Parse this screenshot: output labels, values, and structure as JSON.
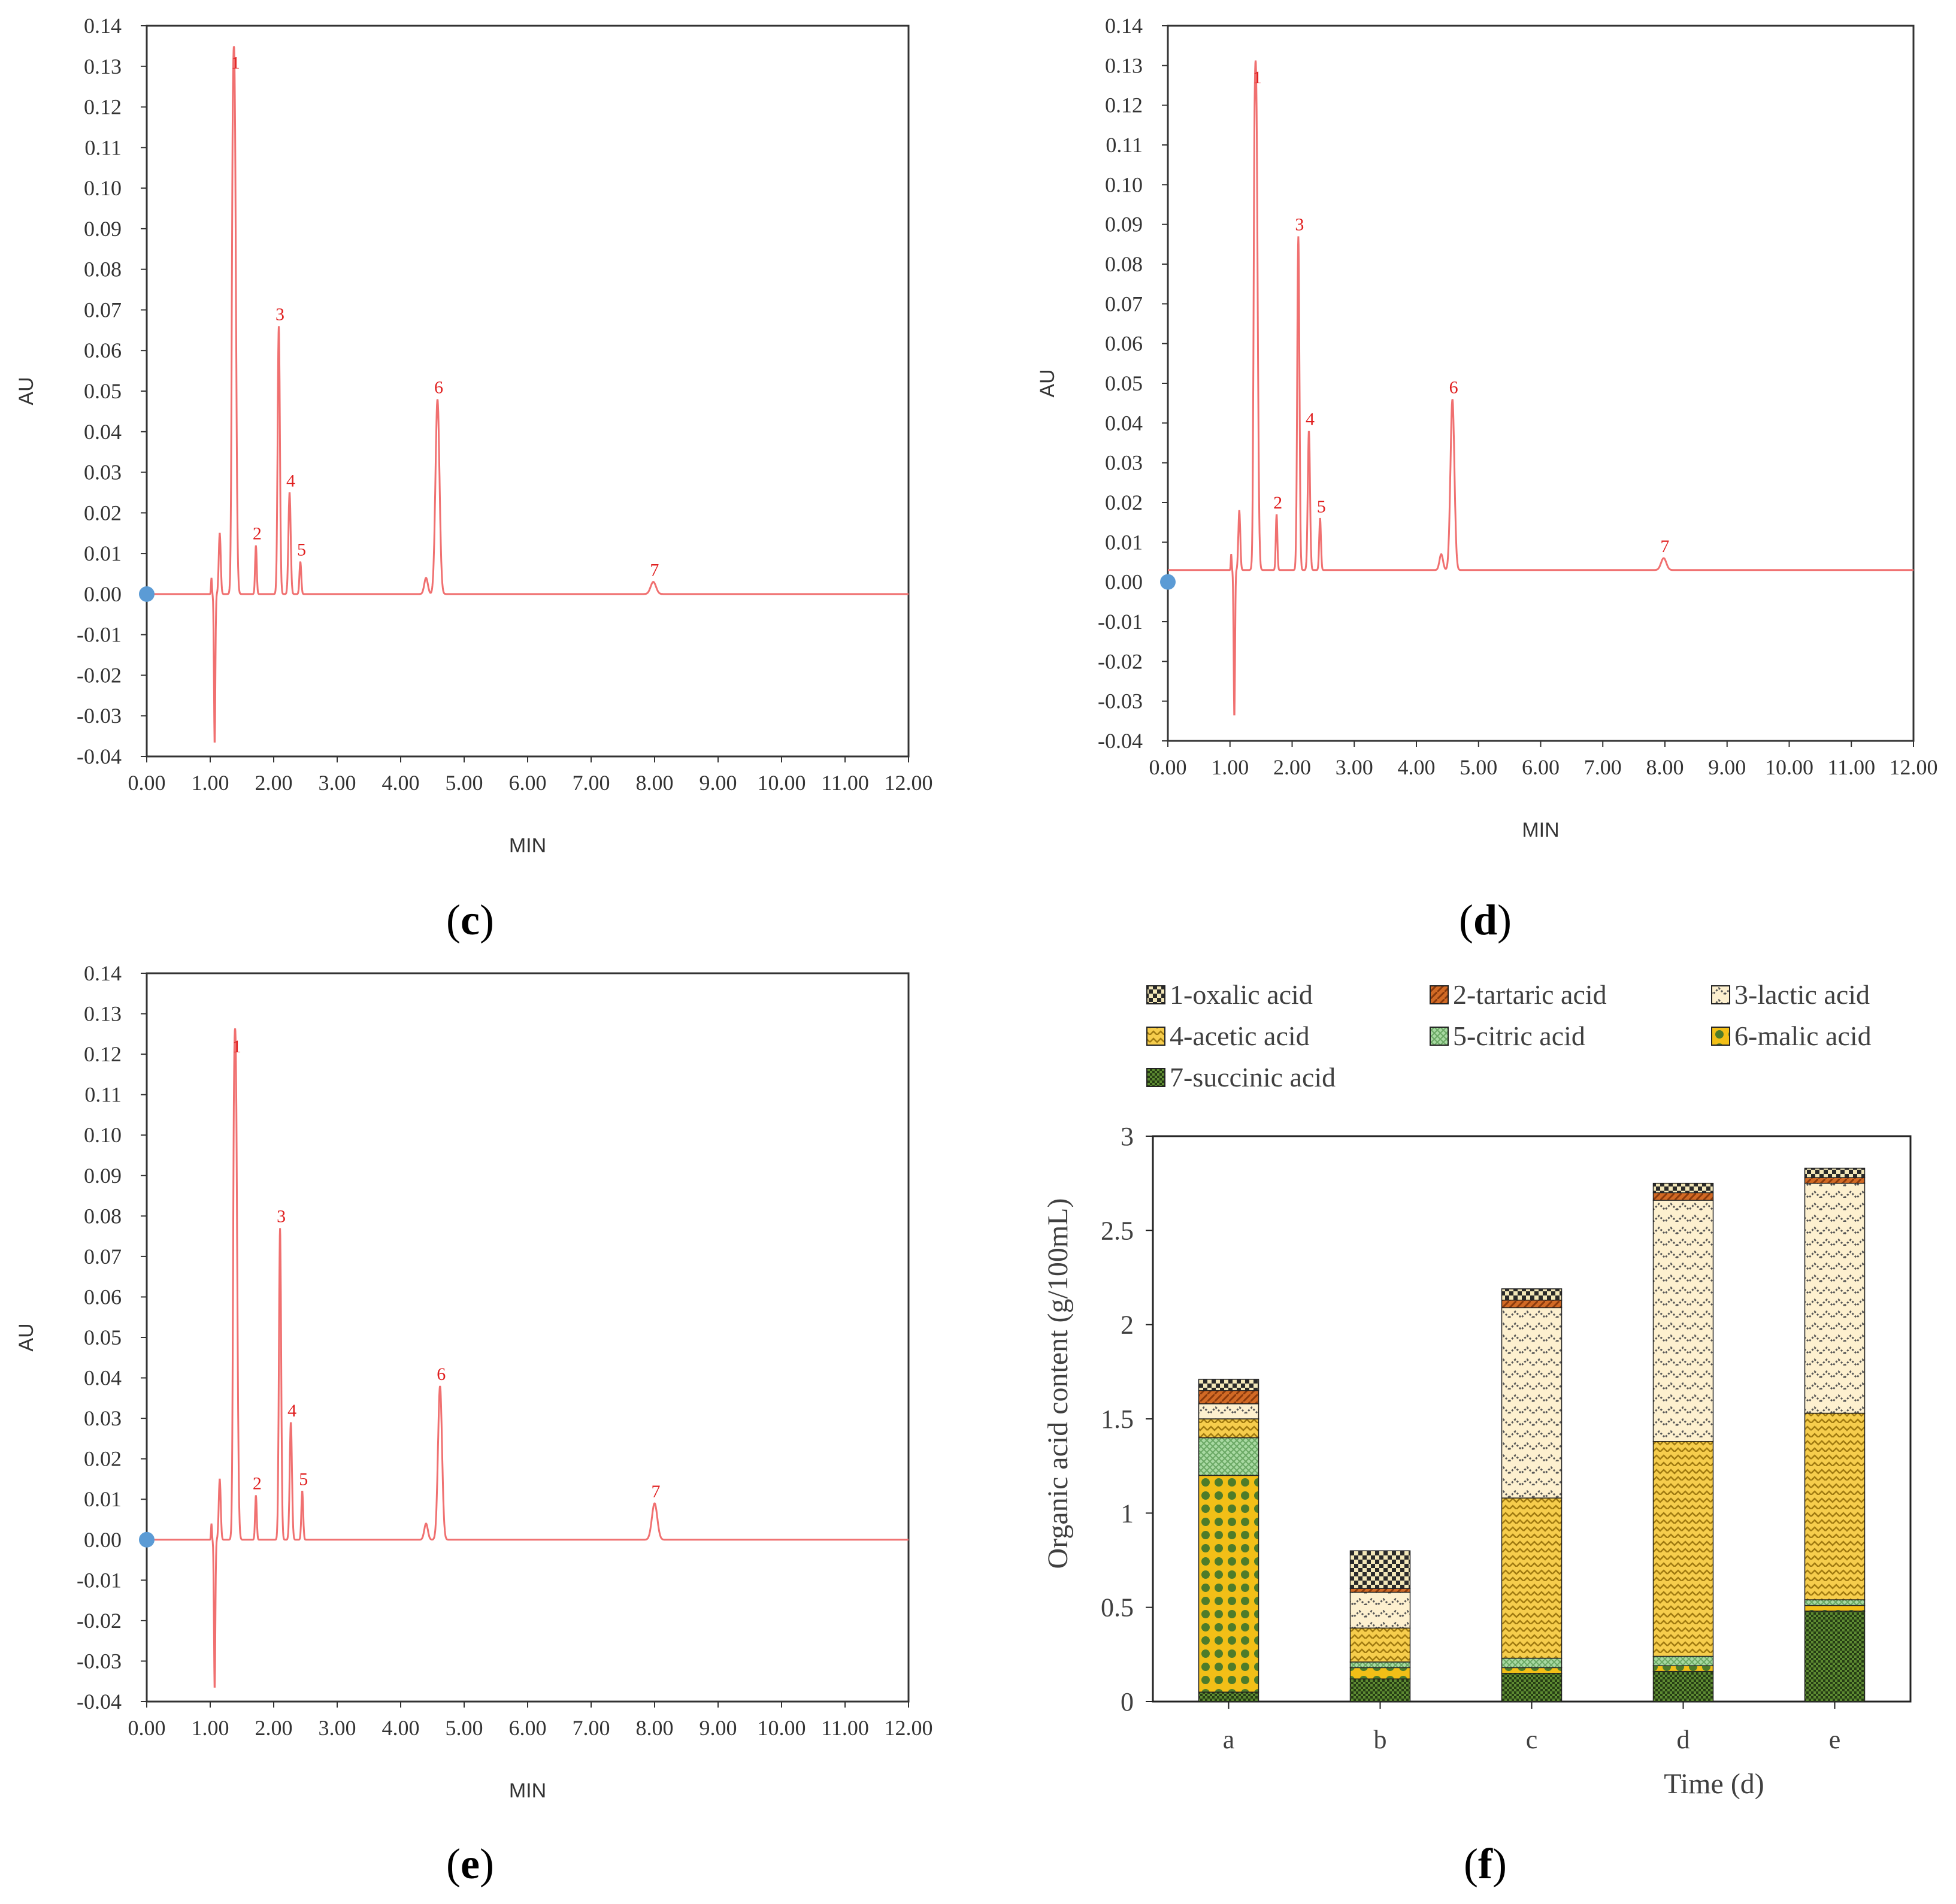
{
  "chart_data": [
    {
      "type": "line",
      "panel_label": "c",
      "xlabel": "MIN",
      "ylabel": "AU",
      "xlim": [
        0,
        12
      ],
      "ylim": [
        -0.04,
        0.14
      ],
      "x_ticks": [
        "0.00",
        "1.00",
        "2.00",
        "3.00",
        "4.00",
        "5.00",
        "6.00",
        "7.00",
        "8.00",
        "9.00",
        "10.00",
        "11.00",
        "12.00"
      ],
      "y_ticks": [
        "-0.04",
        "-0.03",
        "-0.02",
        "-0.01",
        "0.00",
        "0.01",
        "0.02",
        "0.03",
        "0.04",
        "0.05",
        "0.06",
        "0.07",
        "0.08",
        "0.09",
        "0.10",
        "0.11",
        "0.12",
        "0.13",
        "0.14"
      ],
      "baseline": 0.0,
      "peaks": [
        {
          "label": "1",
          "x": 1.38,
          "y": 0.128
        },
        {
          "label": "2",
          "x": 1.72,
          "y": 0.012
        },
        {
          "label": "3",
          "x": 2.08,
          "y": 0.066
        },
        {
          "label": "4",
          "x": 2.25,
          "y": 0.025
        },
        {
          "label": "5",
          "x": 2.42,
          "y": 0.008
        },
        {
          "label": "6",
          "x": 4.58,
          "y": 0.048
        },
        {
          "label": "7",
          "x": 7.98,
          "y": 0.003
        }
      ]
    },
    {
      "type": "line",
      "panel_label": "d",
      "xlabel": "MIN",
      "ylabel": "AU",
      "xlim": [
        0,
        12
      ],
      "ylim": [
        -0.04,
        0.14
      ],
      "x_ticks": [
        "0.00",
        "1.00",
        "2.00",
        "3.00",
        "4.00",
        "5.00",
        "6.00",
        "7.00",
        "8.00",
        "9.00",
        "10.00",
        "11.00",
        "12.00"
      ],
      "y_ticks": [
        "-0.04",
        "-0.03",
        "-0.02",
        "-0.01",
        "0.00",
        "0.01",
        "0.02",
        "0.03",
        "0.04",
        "0.05",
        "0.06",
        "0.07",
        "0.08",
        "0.09",
        "0.10",
        "0.11",
        "0.12",
        "0.13",
        "0.14"
      ],
      "baseline": 0.003,
      "peaks": [
        {
          "label": "1",
          "x": 1.42,
          "y": 0.124
        },
        {
          "label": "2",
          "x": 1.75,
          "y": 0.017
        },
        {
          "label": "3",
          "x": 2.1,
          "y": 0.087
        },
        {
          "label": "4",
          "x": 2.27,
          "y": 0.038
        },
        {
          "label": "5",
          "x": 2.45,
          "y": 0.016
        },
        {
          "label": "6",
          "x": 4.58,
          "y": 0.046
        },
        {
          "label": "7",
          "x": 7.98,
          "y": 0.006
        }
      ]
    },
    {
      "type": "line",
      "panel_label": "e",
      "xlabel": "MIN",
      "ylabel": "AU",
      "xlim": [
        0,
        12
      ],
      "ylim": [
        -0.04,
        0.14
      ],
      "x_ticks": [
        "0.00",
        "1.00",
        "2.00",
        "3.00",
        "4.00",
        "5.00",
        "6.00",
        "7.00",
        "8.00",
        "9.00",
        "10.00",
        "11.00",
        "12.00"
      ],
      "y_ticks": [
        "-0.04",
        "-0.03",
        "-0.02",
        "-0.01",
        "0.00",
        "0.01",
        "0.02",
        "0.03",
        "0.04",
        "0.05",
        "0.06",
        "0.07",
        "0.08",
        "0.09",
        "0.10",
        "0.11",
        "0.12",
        "0.13",
        "0.14"
      ],
      "baseline": 0.0,
      "peaks": [
        {
          "label": "1",
          "x": 1.4,
          "y": 0.119
        },
        {
          "label": "2",
          "x": 1.72,
          "y": 0.011
        },
        {
          "label": "3",
          "x": 2.1,
          "y": 0.077
        },
        {
          "label": "4",
          "x": 2.27,
          "y": 0.029
        },
        {
          "label": "5",
          "x": 2.45,
          "y": 0.012
        },
        {
          "label": "6",
          "x": 4.62,
          "y": 0.038
        },
        {
          "label": "7",
          "x": 8.0,
          "y": 0.009
        }
      ]
    },
    {
      "type": "bar",
      "stacked": true,
      "panel_label": "f",
      "xlabel": "Time (d)",
      "ylabel": "Organic acid content (g/100mL)",
      "ylim": [
        0,
        3
      ],
      "y_ticks": [
        "0",
        "0.5",
        "1",
        "1.5",
        "2",
        "2.5",
        "3"
      ],
      "categories": [
        "a",
        "b",
        "c",
        "d",
        "e"
      ],
      "legend_position": "top",
      "series": [
        {
          "name": "7-succinic acid",
          "color": "#5a8a2e",
          "values": [
            0.05,
            0.12,
            0.15,
            0.16,
            0.48
          ]
        },
        {
          "name": "6-malic acid",
          "color": "#f2c018",
          "values": [
            1.15,
            0.06,
            0.03,
            0.03,
            0.03
          ]
        },
        {
          "name": "5-citric acid",
          "color": "#9fd49a",
          "values": [
            0.2,
            0.03,
            0.05,
            0.05,
            0.03
          ]
        },
        {
          "name": "4-acetic acid",
          "color": "#f6ca45",
          "values": [
            0.1,
            0.18,
            0.85,
            1.14,
            0.99
          ]
        },
        {
          "name": "3-lactic acid",
          "color": "#fdeec8",
          "values": [
            0.08,
            0.19,
            1.01,
            1.28,
            1.22
          ]
        },
        {
          "name": "2-tartaric acid",
          "color": "#c0581a",
          "values": [
            0.07,
            0.02,
            0.04,
            0.04,
            0.03
          ]
        },
        {
          "name": "1-oxalic acid",
          "color": "#d9c88a",
          "values": [
            0.06,
            0.2,
            0.06,
            0.05,
            0.05
          ]
        }
      ],
      "legend_order": [
        "1-oxalic acid",
        "2-tartaric acid",
        "3-lactic acid",
        "4-acetic acid",
        "5-citric acid",
        "6-malic acid",
        "7-succinic acid"
      ]
    }
  ]
}
